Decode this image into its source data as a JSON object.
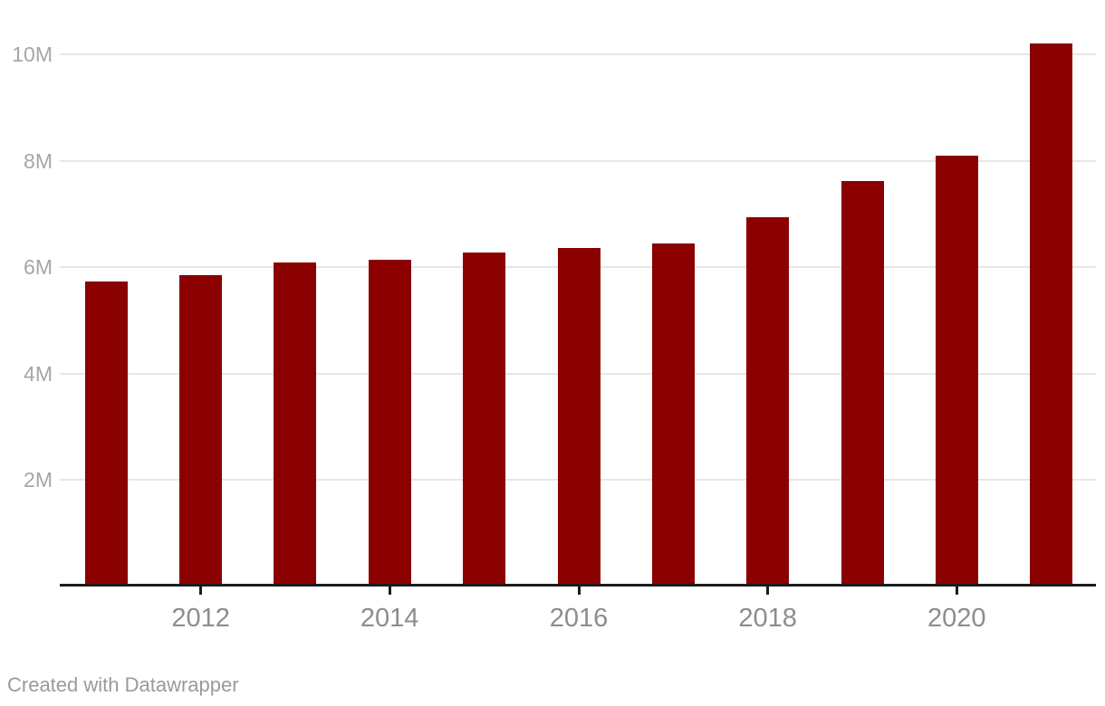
{
  "chart_data": {
    "type": "bar",
    "title": "",
    "categories": [
      "2011",
      "2012",
      "2013",
      "2014",
      "2015",
      "2016",
      "2017",
      "2018",
      "2019",
      "2020",
      "2021"
    ],
    "values": [
      5.73,
      5.84,
      6.08,
      6.13,
      6.27,
      6.35,
      6.45,
      6.94,
      7.61,
      8.1,
      10.21
    ],
    "value_unit": "millions",
    "xlabel": "",
    "ylabel": "",
    "ylim": [
      0,
      10.4
    ],
    "y_ticks": [
      {
        "value": 2,
        "label": "2M"
      },
      {
        "value": 4,
        "label": "4M"
      },
      {
        "value": 6,
        "label": "6M"
      },
      {
        "value": 8,
        "label": "8M"
      },
      {
        "value": 10,
        "label": "10M"
      }
    ],
    "x_ticks": [
      {
        "year": "2012"
      },
      {
        "year": "2014"
      },
      {
        "year": "2016"
      },
      {
        "year": "2018"
      },
      {
        "year": "2020"
      }
    ],
    "grid": "horizontal-only",
    "legend_position": "none",
    "bar_color": "#8b0000",
    "gridline_color": "#e6e6e6",
    "axis_color": "#1c1c1c",
    "y_label_color": "#a6a6a6",
    "x_label_color": "#8d8d8d"
  },
  "footer": {
    "credit": "Created with Datawrapper"
  }
}
